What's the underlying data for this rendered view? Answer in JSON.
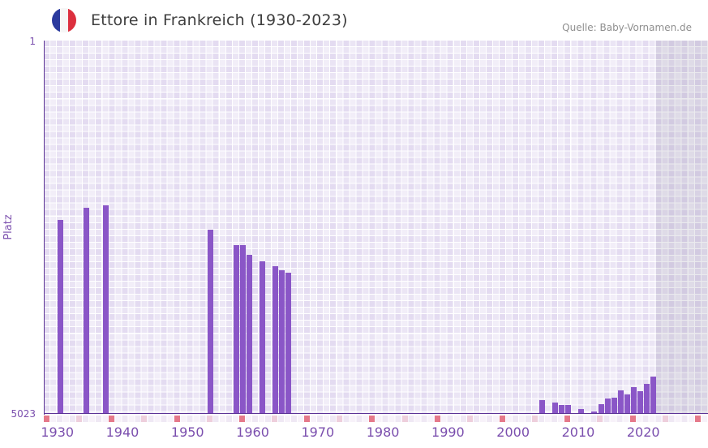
{
  "header": {
    "title": "Ettore in Frankreich (1930-2023)",
    "source": "Quelle: Baby-Vornamen.de",
    "flag_icon": "france-flag-icon"
  },
  "chart_data": {
    "type": "bar",
    "title": "Ettore in Frankreich (1930-2023)",
    "xlabel": "",
    "ylabel": "Platz",
    "legend": "none",
    "grid": "checkered-background",
    "y_axis": {
      "inverted": true,
      "min": 1,
      "max": 5023,
      "tick_labels": [
        "1",
        "5023"
      ]
    },
    "x_axis": {
      "start": 1930,
      "end": 2023,
      "tick_labels": [
        "1930",
        "1940",
        "1950",
        "1960",
        "1970",
        "1980",
        "1990",
        "2000",
        "2010",
        "2020"
      ]
    },
    "series": [
      {
        "name": "Platz",
        "points": [
          {
            "year": 1930,
            "rank": 2420
          },
          {
            "year": 1934,
            "rank": 2252
          },
          {
            "year": 1937,
            "rank": 2219
          },
          {
            "year": 1953,
            "rank": 2544
          },
          {
            "year": 1957,
            "rank": 2755
          },
          {
            "year": 1958,
            "rank": 2755
          },
          {
            "year": 1959,
            "rank": 2886
          },
          {
            "year": 1961,
            "rank": 2977
          },
          {
            "year": 1963,
            "rank": 3039
          },
          {
            "year": 1964,
            "rank": 3090
          },
          {
            "year": 1965,
            "rank": 3130
          },
          {
            "year": 2004,
            "rank": 4843
          },
          {
            "year": 2006,
            "rank": 4876
          },
          {
            "year": 2007,
            "rank": 4909
          },
          {
            "year": 2008,
            "rank": 4909
          },
          {
            "year": 2010,
            "rank": 4967
          },
          {
            "year": 2012,
            "rank": 5000
          },
          {
            "year": 2013,
            "rank": 4894
          },
          {
            "year": 2014,
            "rank": 4824
          },
          {
            "year": 2015,
            "rank": 4813
          },
          {
            "year": 2016,
            "rank": 4715
          },
          {
            "year": 2017,
            "rank": 4769
          },
          {
            "year": 2018,
            "rank": 4664
          },
          {
            "year": 2019,
            "rank": 4725
          },
          {
            "year": 2020,
            "rank": 4624
          },
          {
            "year": 2021,
            "rank": 4522
          }
        ]
      }
    ],
    "colors": {
      "bar": "#8a56c7",
      "axis_line": "#5c3396",
      "axis_labels": "#7b4fae",
      "title": "#3e3e3e",
      "source": "#8f8f8f",
      "strip_strong": "#e5798a",
      "strip_light": "#eecfdc"
    }
  }
}
